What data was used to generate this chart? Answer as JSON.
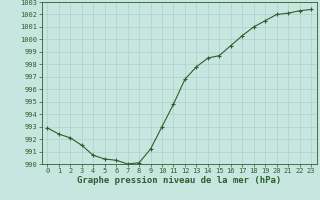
{
  "x": [
    0,
    1,
    2,
    3,
    4,
    5,
    6,
    7,
    8,
    9,
    10,
    11,
    12,
    13,
    14,
    15,
    16,
    17,
    18,
    19,
    20,
    21,
    22,
    23
  ],
  "y": [
    992.9,
    992.4,
    992.1,
    991.5,
    990.7,
    990.4,
    990.3,
    990.0,
    990.1,
    991.2,
    993.0,
    994.8,
    996.8,
    997.8,
    998.5,
    998.7,
    999.5,
    1000.3,
    1001.0,
    1001.5,
    1002.0,
    1002.1,
    1002.3,
    1002.4
  ],
  "line_color": "#2d5f2d",
  "marker": "+",
  "bg_color": "#c8e6e0",
  "grid_color": "#a8ccc6",
  "axis_color": "#2d5f2d",
  "xlabel": "Graphe pression niveau de la mer (hPa)",
  "ylim": [
    990,
    1003
  ],
  "xlim": [
    -0.5,
    23.5
  ],
  "yticks": [
    990,
    991,
    992,
    993,
    994,
    995,
    996,
    997,
    998,
    999,
    1000,
    1001,
    1002,
    1003
  ],
  "xticks": [
    0,
    1,
    2,
    3,
    4,
    5,
    6,
    7,
    8,
    9,
    10,
    11,
    12,
    13,
    14,
    15,
    16,
    17,
    18,
    19,
    20,
    21,
    22,
    23
  ],
  "tick_label_fontsize": 5.0,
  "xlabel_fontsize": 6.5,
  "markersize": 3.5,
  "linewidth": 0.8
}
